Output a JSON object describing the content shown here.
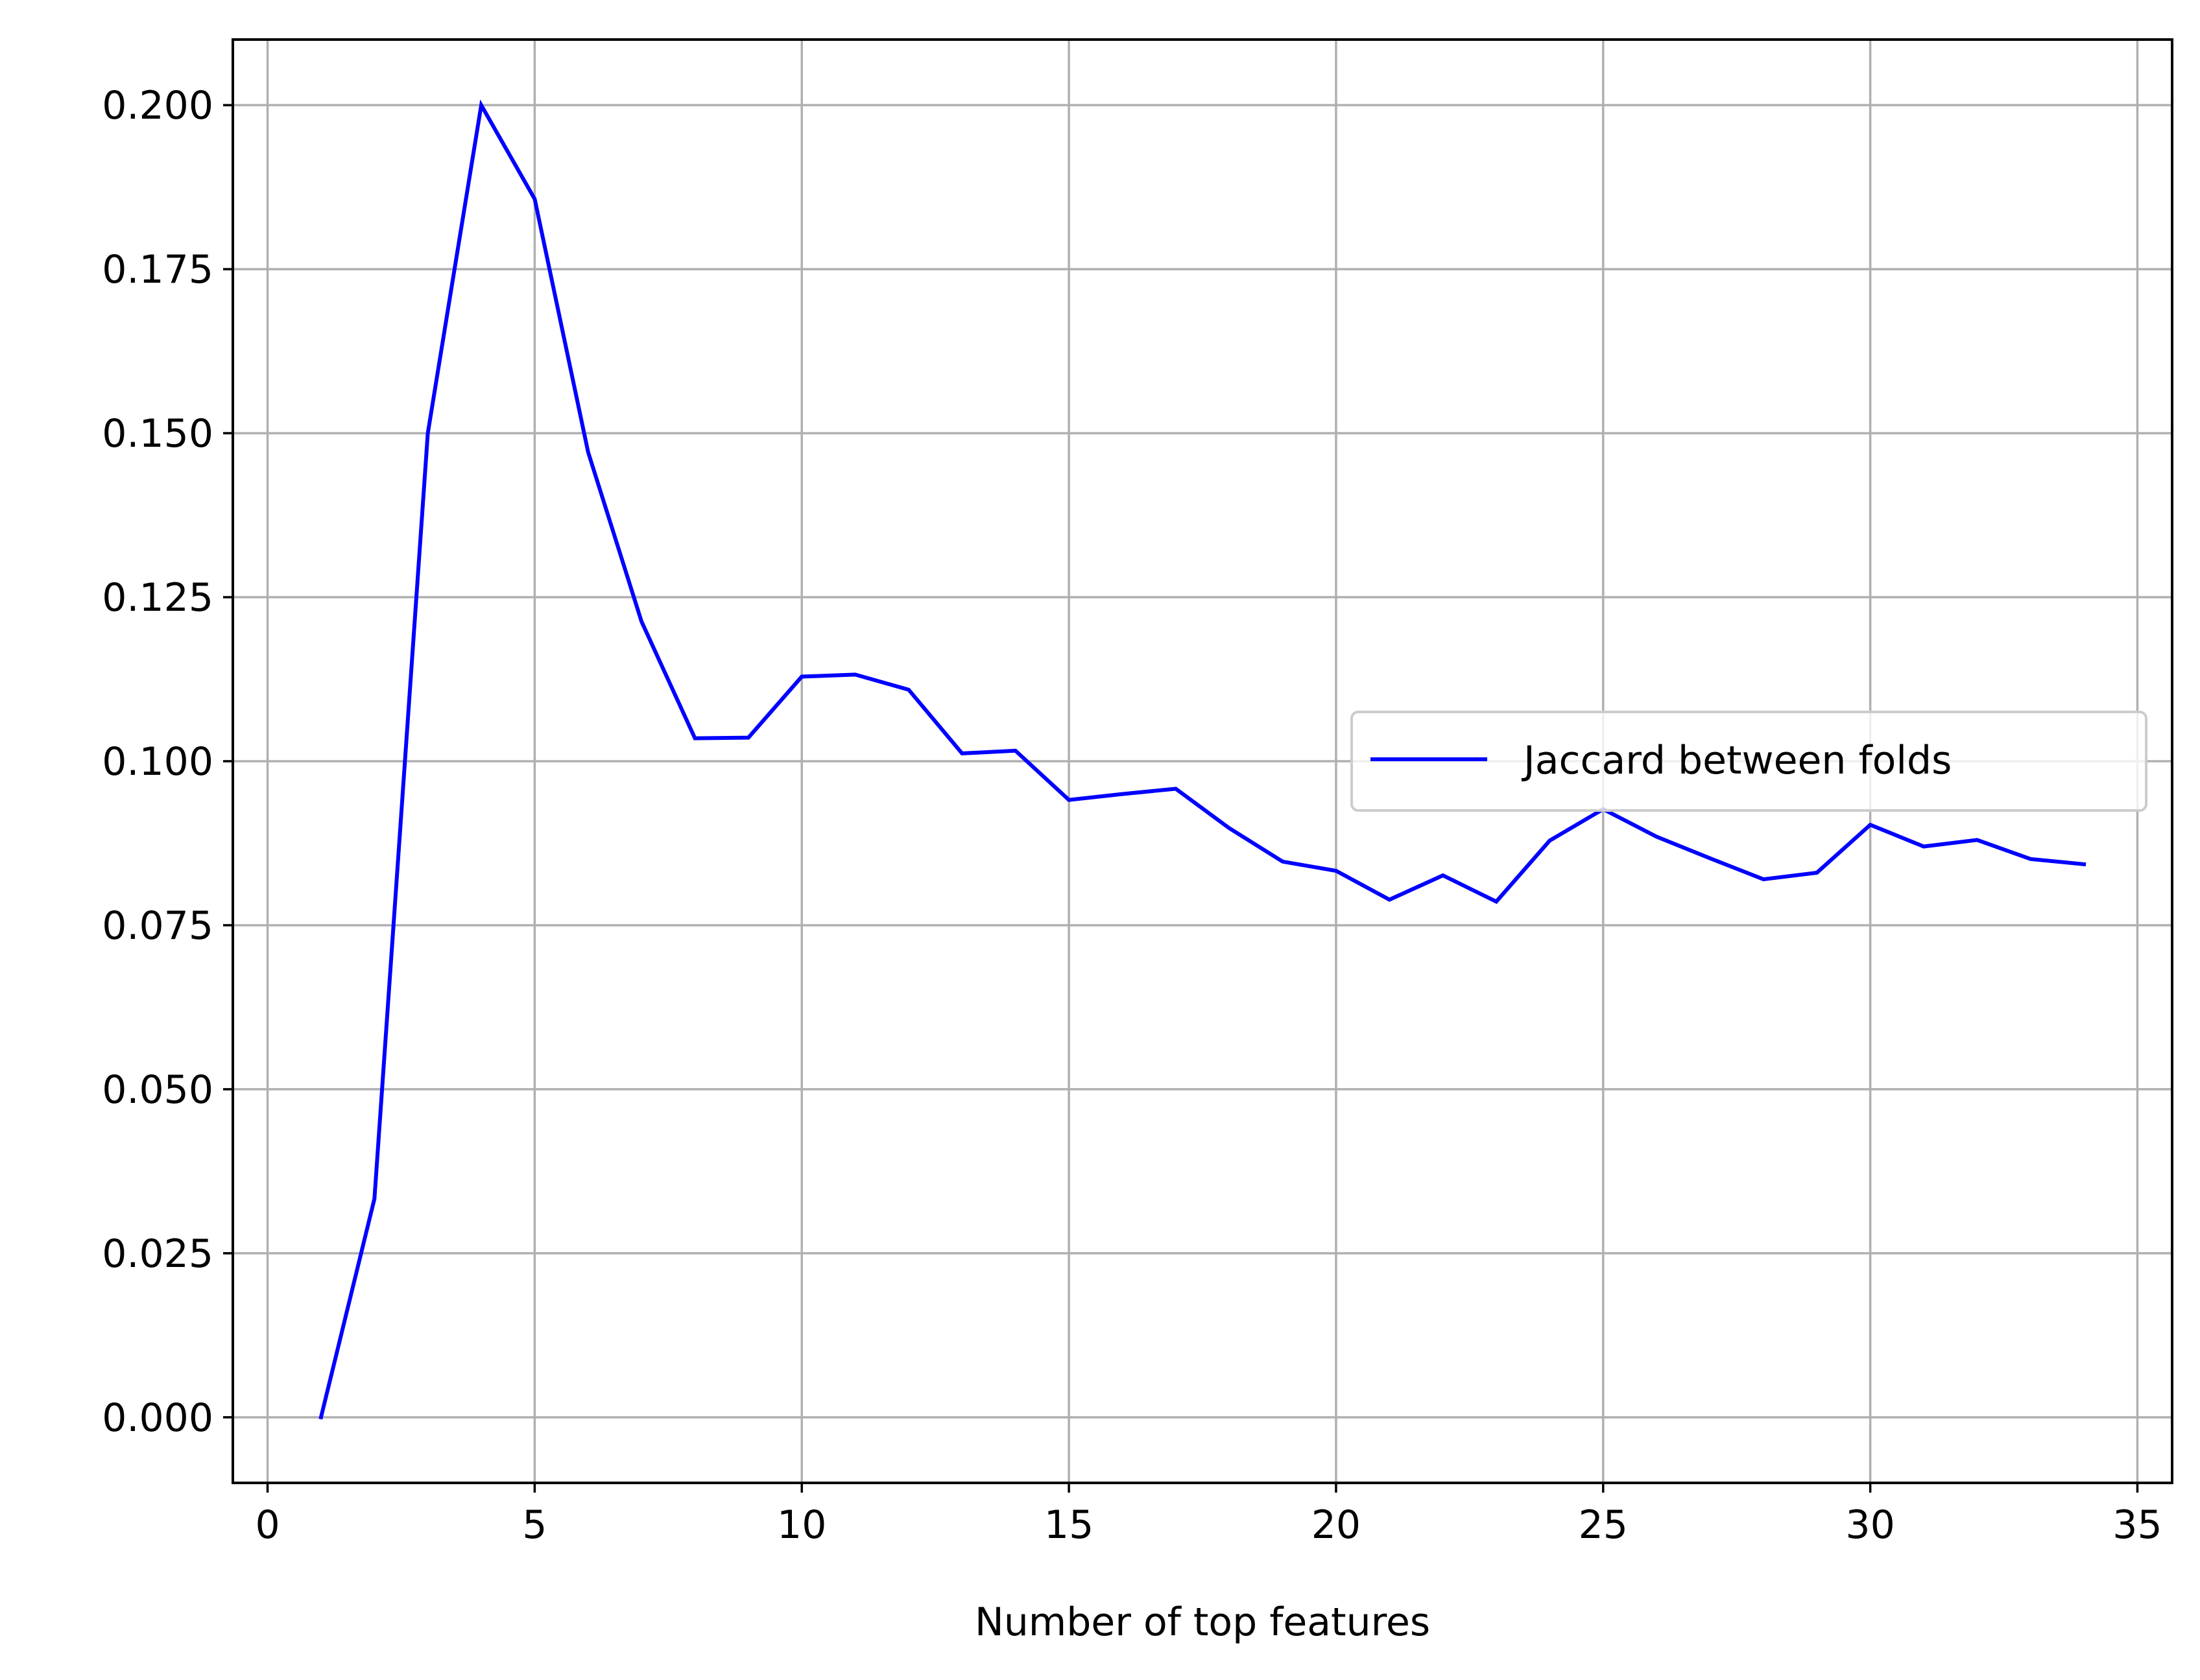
{
  "chart_data": {
    "type": "line",
    "title": "",
    "xlabel": "Number of top features",
    "ylabel": "",
    "xlim": [
      -0.65,
      35.65
    ],
    "ylim": [
      -0.01,
      0.21
    ],
    "xticks": [
      0,
      5,
      10,
      15,
      20,
      25,
      30,
      35
    ],
    "yticks": [
      0.0,
      0.025,
      0.05,
      0.075,
      0.1,
      0.125,
      0.15,
      0.175,
      0.2
    ],
    "xtick_labels": [
      "0",
      "5",
      "10",
      "15",
      "20",
      "25",
      "30",
      "35"
    ],
    "ytick_labels": [
      "0.000",
      "0.025",
      "0.050",
      "0.075",
      "0.100",
      "0.125",
      "0.150",
      "0.175",
      "0.200"
    ],
    "grid": true,
    "legend_position": "center-right",
    "series": [
      {
        "name": "Jaccard between folds",
        "color": "#0000ff",
        "x": [
          1,
          2,
          3,
          4,
          5,
          6,
          7,
          8,
          9,
          10,
          11,
          12,
          13,
          14,
          15,
          16,
          17,
          18,
          19,
          20,
          21,
          22,
          23,
          24,
          25,
          26,
          27,
          28,
          29,
          30,
          31,
          32,
          33,
          34
        ],
        "y": [
          0.0,
          0.0333,
          0.15,
          0.2,
          0.1857,
          0.1471,
          0.1213,
          0.1035,
          0.1036,
          0.1129,
          0.1132,
          0.1109,
          0.1012,
          0.1016,
          0.0941,
          0.095,
          0.0958,
          0.0898,
          0.0847,
          0.0833,
          0.0789,
          0.0826,
          0.0786,
          0.0879,
          0.0927,
          0.0885,
          0.0852,
          0.082,
          0.083,
          0.0903,
          0.087,
          0.088,
          0.0851,
          0.0843
        ]
      }
    ]
  }
}
